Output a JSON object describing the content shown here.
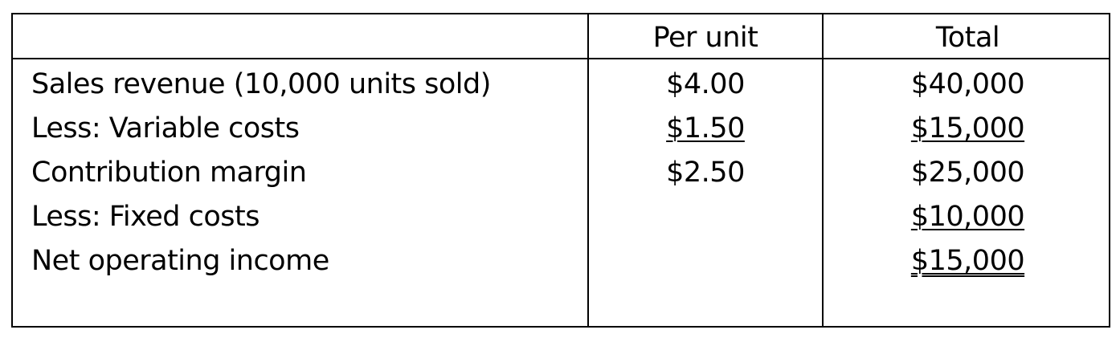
{
  "header": {
    "col_label": "",
    "col_per_unit": "Per unit",
    "col_total": "Total"
  },
  "rows": [
    {
      "label": "Sales revenue (10,000 units sold)",
      "per_unit": "$4.00",
      "total": "$40,000",
      "per_unit_underline": "none",
      "total_underline": "none"
    },
    {
      "label": "Less: Variable costs",
      "per_unit": "$1.50",
      "total": "$15,000",
      "per_unit_underline": "single",
      "total_underline": "single"
    },
    {
      "label": "Contribution margin",
      "per_unit": "$2.50",
      "total": "$25,000",
      "per_unit_underline": "none",
      "total_underline": "none"
    },
    {
      "label": "Less: Fixed costs",
      "per_unit": "",
      "total": "$10,000",
      "per_unit_underline": "none",
      "total_underline": "single"
    },
    {
      "label": "Net operating income",
      "per_unit": "",
      "total": "$15,000",
      "per_unit_underline": "none",
      "total_underline": "double"
    }
  ]
}
